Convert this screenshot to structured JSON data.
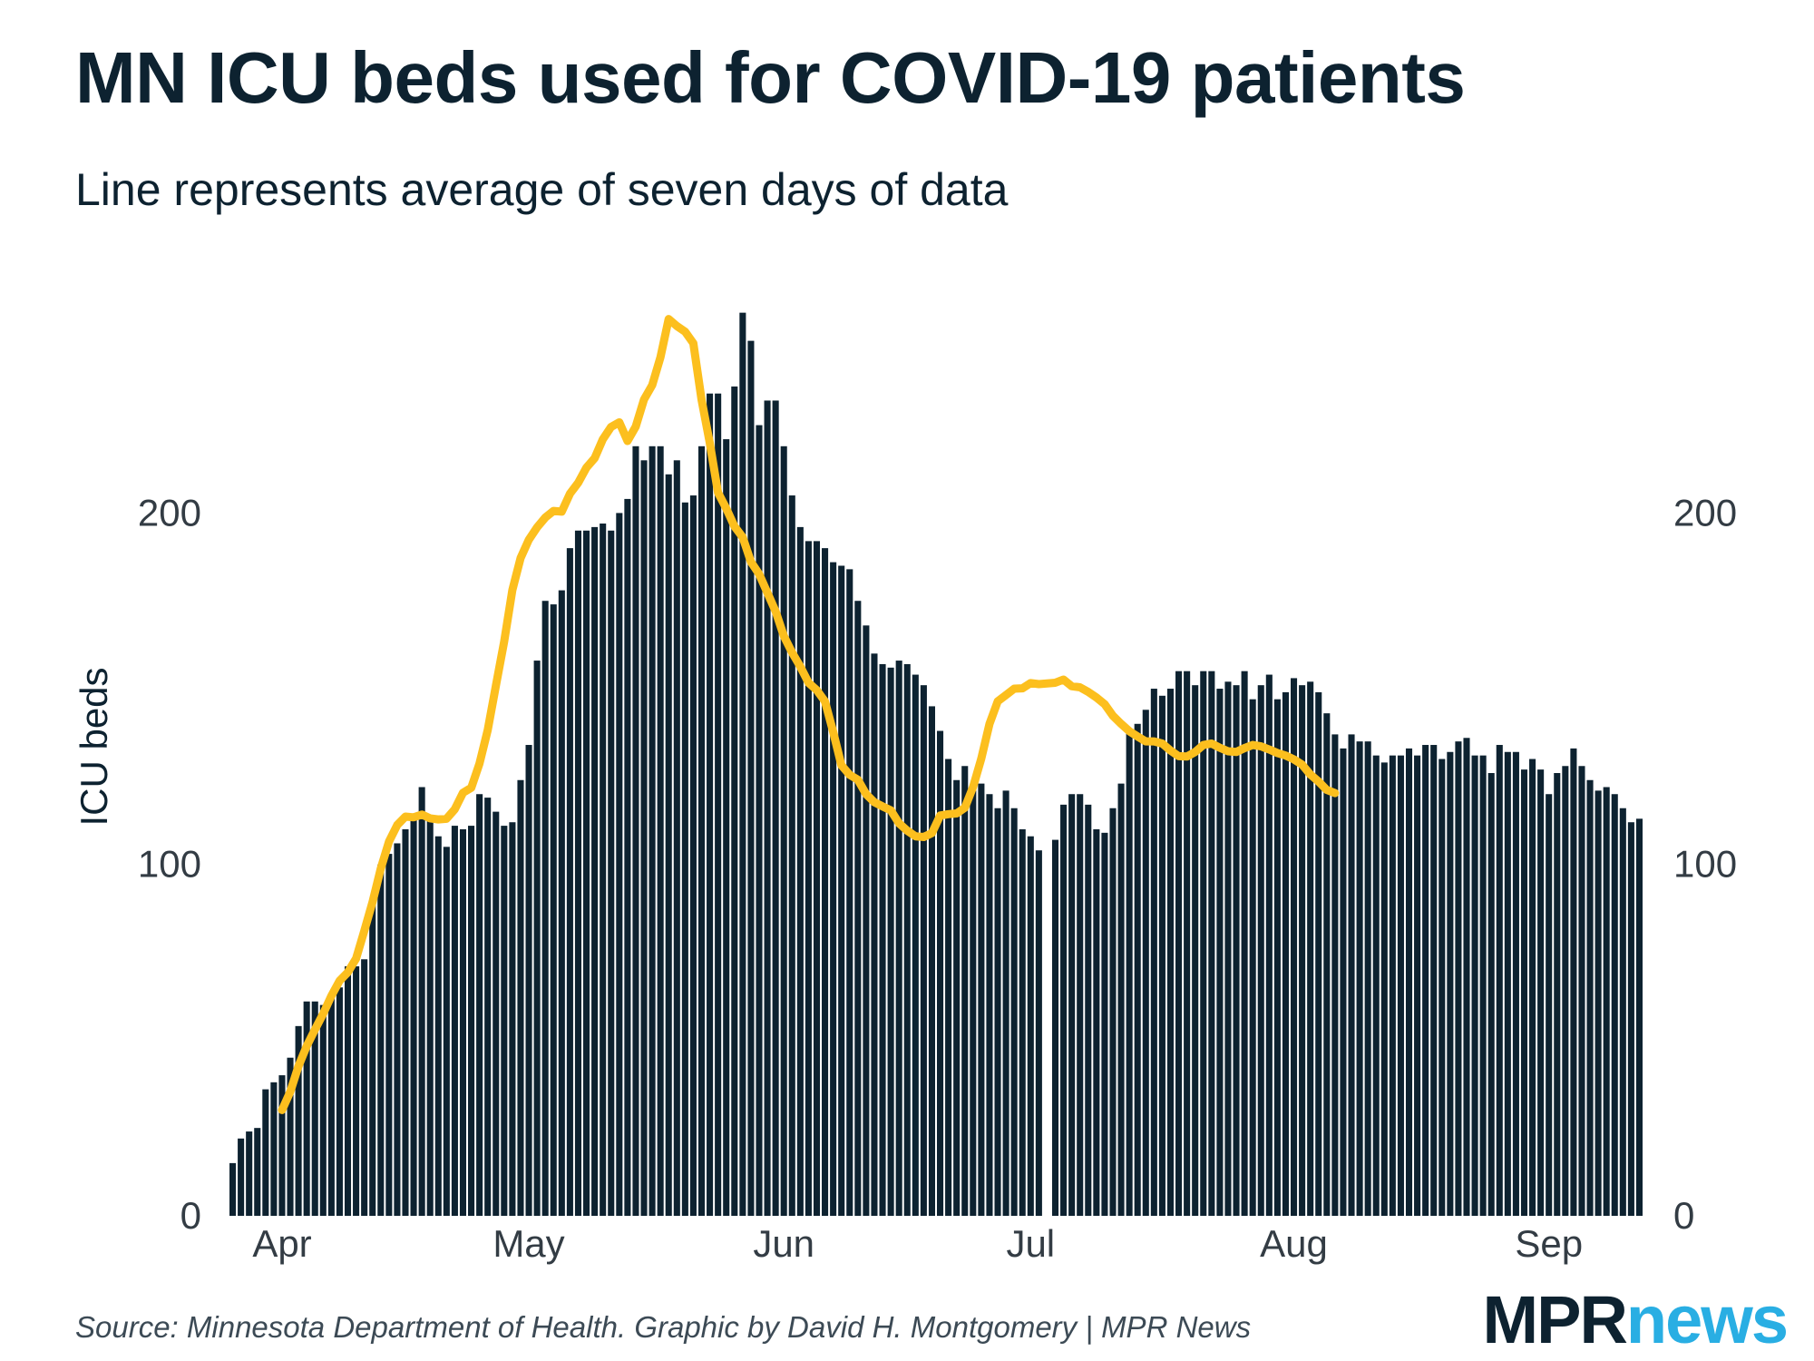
{
  "header": {
    "title": "MN ICU beds used for COVID-19 patients",
    "subtitle": "Line represents average of seven days of data"
  },
  "footer": {
    "source": "Source: Minnesota Department of Health. Graphic by David H. Montgomery | MPR News",
    "logo_part1": "MPR",
    "logo_part2": "news"
  },
  "colors": {
    "bar": "#0d2230",
    "average_line": "#fcbf1e",
    "logo_mpr": "#0d2230",
    "logo_news": "#29aee3"
  },
  "chart_data": {
    "type": "bar",
    "ylabel": "ICU beds",
    "ylim": [
      0,
      265
    ],
    "y_ticks": [
      0,
      100,
      200
    ],
    "x_start_date": "2020-03-26",
    "x_tick_labels": [
      {
        "label": "Apr",
        "day": 6
      },
      {
        "label": "May",
        "day": 36
      },
      {
        "label": "Jun",
        "day": 67
      },
      {
        "label": "Jul",
        "day": 97
      },
      {
        "label": "Aug",
        "day": 128
      },
      {
        "label": "Sep",
        "day": 159
      }
    ],
    "missing_day_gap_after": 98,
    "daily_values": [
      15,
      22,
      24,
      25,
      36,
      38,
      40,
      45,
      54,
      61,
      61,
      60,
      62,
      65,
      71,
      71,
      73,
      90,
      100,
      103,
      106,
      110,
      113,
      122,
      114,
      108,
      105,
      111,
      110,
      111,
      120,
      119,
      115,
      111,
      112,
      124,
      134,
      158,
      175,
      174,
      178,
      190,
      195,
      195,
      196,
      197,
      195,
      200,
      204,
      219,
      215,
      219,
      219,
      211,
      215,
      203,
      205,
      219,
      234,
      234,
      221,
      236,
      257,
      249,
      225,
      232,
      232,
      219,
      205,
      196,
      192,
      192,
      190,
      186,
      185,
      184,
      175,
      168,
      160,
      157,
      156,
      158,
      157,
      154,
      151,
      145,
      138,
      130,
      124,
      128,
      121,
      123,
      120,
      116,
      121,
      116,
      110,
      108,
      104,
      107,
      117,
      120,
      120,
      117,
      110,
      109,
      116,
      123,
      138,
      140,
      144,
      150,
      148,
      150,
      155,
      155,
      151,
      155,
      155,
      150,
      152,
      151,
      155,
      147,
      151,
      154,
      147,
      149,
      153,
      151,
      152,
      149,
      143,
      137,
      133,
      137,
      135,
      135,
      131,
      129,
      131,
      131,
      133,
      131,
      134,
      134,
      130,
      132,
      135,
      136,
      131,
      131,
      126,
      134,
      132,
      132,
      127,
      130,
      127,
      120,
      126,
      128,
      133,
      128,
      124,
      121,
      122,
      120,
      116,
      112,
      113
    ],
    "average_start_day": 6,
    "seven_day_average": [
      30.1,
      35.3,
      42.6,
      48.3,
      53.0,
      57.5,
      62.6,
      66.9,
      69.3,
      73.2,
      81.1,
      89.3,
      98.8,
      106.5,
      111.2,
      113.6,
      113.4,
      114.2,
      113.1,
      112.8,
      113.0,
      115.7,
      120.4,
      121.8,
      128.7,
      138.2,
      150.9,
      163.4,
      178.1,
      187.2,
      192.4,
      195.9,
      198.7,
      200.6,
      200.4,
      205.5,
      208.6,
      212.9,
      215.6,
      221.0,
      224.5,
      225.8,
      220.5,
      224.6,
      232.3,
      236.4,
      244.3,
      255.2,
      253.2,
      251.6,
      248.3,
      232.2,
      219.9,
      205.8,
      201.3,
      196.2,
      193.1,
      186.1,
      182.6,
      177.3,
      172.0,
      165.0,
      160.3,
      156.3,
      151.7,
      149.6,
      146.4,
      137.7,
      128.2,
      125.5,
      124.1,
      120.0,
      117.7,
      116.5,
      115.4,
      111.7,
      109.6,
      108.0,
      107.8,
      108.9,
      113.9,
      114.3,
      114.5,
      116.1,
      122.0,
      130.1,
      140.0,
      146.4,
      148.2,
      150.0,
      150.1,
      151.6,
      151.3,
      151.7,
      152.6,
      150.7,
      150.4,
      149.1,
      147.5,
      145.6,
      142.3,
      140.0,
      137.9,
      136.4,
      135.0,
      135.0,
      134.4,
      132.4,
      130.8,
      130.7,
      132.0,
      134.0,
      134.4,
      133.2,
      132.2,
      132.0,
      133.1,
      134.0,
      133.6,
      132.7,
      131.7,
      131.0,
      129.9,
      128.4,
      125.6,
      123.6,
      121.2,
      120.3
    ]
  }
}
